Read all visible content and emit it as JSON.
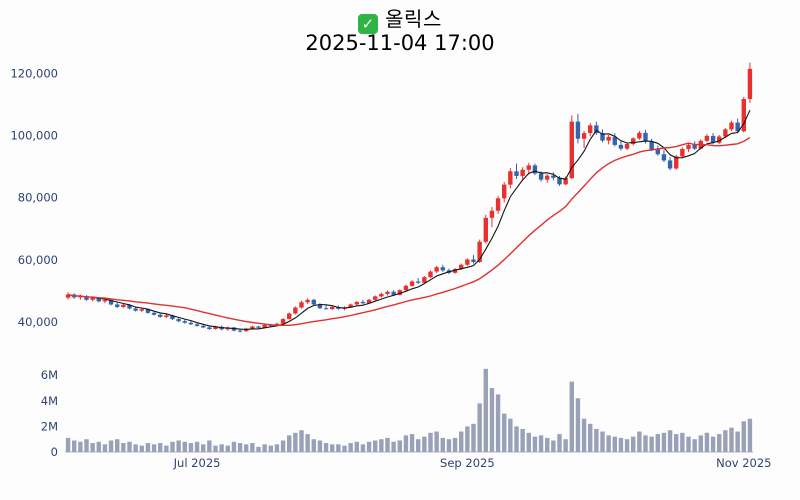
{
  "header": {
    "badge_check": "✓",
    "title": "올릭스",
    "datetime": "2025-11-04 17:00"
  },
  "chart_data": {
    "type": "candlestick",
    "title": "올릭스",
    "subtitle": "2025-11-04 17:00",
    "panels": [
      "price",
      "volume"
    ],
    "grid": false,
    "price_axis": {
      "min": 29000,
      "max": 125000,
      "ticks": [
        {
          "v": 40000,
          "label": "40,000"
        },
        {
          "v": 60000,
          "label": "60,000"
        },
        {
          "v": 80000,
          "label": "80,000"
        },
        {
          "v": 100000,
          "label": "100,000"
        },
        {
          "v": 120000,
          "label": "120,000"
        }
      ]
    },
    "volume_axis": {
      "unit": "M",
      "max": 6.8,
      "ticks": [
        {
          "v": 0,
          "label": "0"
        },
        {
          "v": 2,
          "label": "2M"
        },
        {
          "v": 4,
          "label": "4M"
        },
        {
          "v": 6,
          "label": "6M"
        }
      ]
    },
    "x_ticks": [
      {
        "index": 21,
        "label": "Jul 2025"
      },
      {
        "index": 65,
        "label": "Sep 2025"
      },
      {
        "index": 110,
        "label": "Nov 2025"
      }
    ],
    "overlays": [
      {
        "name": "MA5",
        "window": 5,
        "color": "#141414"
      },
      {
        "name": "MA20",
        "window": 20,
        "color": "#e03131"
      }
    ],
    "colors": {
      "up": "#e8312f",
      "down": "#3464ad",
      "volume": "#99a1b8",
      "axis_text": "#2e4372",
      "baseline": "#b5b5b5"
    },
    "candle_fields": [
      "open",
      "high",
      "low",
      "close",
      "volume_millions"
    ],
    "candles": [
      [
        47800,
        49500,
        47200,
        48800,
        1.1
      ],
      [
        48800,
        49200,
        47400,
        47900,
        0.9
      ],
      [
        47900,
        48800,
        47100,
        48300,
        0.8
      ],
      [
        48300,
        48600,
        46800,
        47100,
        1.0
      ],
      [
        47100,
        48200,
        46600,
        47800,
        0.7
      ],
      [
        47800,
        48000,
        46300,
        46600,
        0.8
      ],
      [
        46600,
        47500,
        46000,
        47100,
        0.6
      ],
      [
        47100,
        47300,
        45300,
        45600,
        0.9
      ],
      [
        45600,
        46200,
        44500,
        44800,
        1.0
      ],
      [
        44800,
        45900,
        44400,
        45500,
        0.7
      ],
      [
        45500,
        45800,
        44000,
        44300,
        0.8
      ],
      [
        44300,
        44800,
        43300,
        43600,
        0.6
      ],
      [
        43600,
        44500,
        43200,
        44100,
        0.5
      ],
      [
        44100,
        44300,
        42600,
        42900,
        0.7
      ],
      [
        42900,
        43400,
        42000,
        42300,
        0.6
      ],
      [
        42300,
        42700,
        41300,
        41600,
        0.7
      ],
      [
        41600,
        42500,
        41200,
        42100,
        0.5
      ],
      [
        42100,
        42300,
        40600,
        40900,
        0.8
      ],
      [
        40900,
        41300,
        39900,
        40200,
        0.9
      ],
      [
        40200,
        40700,
        39400,
        39700,
        0.8
      ],
      [
        39700,
        40300,
        39000,
        39200,
        0.7
      ],
      [
        39200,
        39700,
        38400,
        38700,
        0.8
      ],
      [
        38700,
        39300,
        38000,
        38200,
        0.6
      ],
      [
        38200,
        38600,
        37400,
        37700,
        0.9
      ],
      [
        37700,
        38700,
        37500,
        38400,
        0.5
      ],
      [
        38400,
        38800,
        37300,
        37600,
        0.6
      ],
      [
        37600,
        38500,
        37200,
        38200,
        0.5
      ],
      [
        38200,
        38400,
        36900,
        37200,
        0.8
      ],
      [
        37200,
        37800,
        36600,
        37000,
        0.7
      ],
      [
        37000,
        38100,
        36800,
        37800,
        0.6
      ],
      [
        37800,
        38800,
        37500,
        38500,
        0.7
      ],
      [
        38500,
        38700,
        37700,
        38100,
        0.4
      ],
      [
        38100,
        39300,
        37900,
        39000,
        0.6
      ],
      [
        39000,
        39400,
        38400,
        38700,
        0.5
      ],
      [
        38700,
        39700,
        38500,
        39400,
        0.6
      ],
      [
        39400,
        41200,
        39200,
        40900,
        0.9
      ],
      [
        40900,
        43000,
        40700,
        42700,
        1.3
      ],
      [
        42700,
        45000,
        42400,
        44600,
        1.5
      ],
      [
        44600,
        46800,
        44300,
        46300,
        1.7
      ],
      [
        46300,
        47600,
        45800,
        47100,
        1.4
      ],
      [
        47100,
        47400,
        45200,
        45600,
        1.0
      ],
      [
        45600,
        46000,
        44100,
        44400,
        0.9
      ],
      [
        44400,
        45300,
        43900,
        44100,
        0.7
      ],
      [
        44100,
        45100,
        43800,
        44800,
        0.6
      ],
      [
        44800,
        45300,
        43900,
        44200,
        0.6
      ],
      [
        44200,
        45000,
        43700,
        44700,
        0.5
      ],
      [
        44700,
        45900,
        44500,
        45600,
        0.7
      ],
      [
        45600,
        46700,
        45300,
        46400,
        0.8
      ],
      [
        46400,
        47100,
        45700,
        46000,
        0.6
      ],
      [
        46000,
        47400,
        45800,
        47100,
        0.8
      ],
      [
        47100,
        48500,
        46900,
        48200,
        0.9
      ],
      [
        48200,
        49400,
        47800,
        49000,
        1.0
      ],
      [
        49000,
        50100,
        48500,
        49700,
        1.1
      ],
      [
        49700,
        50200,
        48400,
        48700,
        0.8
      ],
      [
        48700,
        50500,
        48500,
        50200,
        0.9
      ],
      [
        50200,
        52000,
        49900,
        51600,
        1.3
      ],
      [
        51600,
        53400,
        51300,
        53000,
        1.4
      ],
      [
        53000,
        54100,
        52200,
        52600,
        1.0
      ],
      [
        52600,
        54800,
        52400,
        54400,
        1.2
      ],
      [
        54400,
        56600,
        54100,
        56200,
        1.5
      ],
      [
        56200,
        58000,
        55700,
        57600,
        1.6
      ],
      [
        57600,
        58400,
        56100,
        56600,
        1.1
      ],
      [
        56600,
        57200,
        55400,
        55800,
        1.0
      ],
      [
        55800,
        57400,
        55500,
        57000,
        1.1
      ],
      [
        57000,
        58800,
        56700,
        58400,
        1.6
      ],
      [
        58400,
        60500,
        58000,
        60100,
        2.0
      ],
      [
        60100,
        61500,
        58800,
        59300,
        2.2
      ],
      [
        59300,
        66500,
        59000,
        65800,
        3.8
      ],
      [
        65800,
        74500,
        65200,
        73500,
        6.5
      ],
      [
        73500,
        77000,
        70500,
        75800,
        5.0
      ],
      [
        75800,
        80500,
        74800,
        79800,
        4.5
      ],
      [
        79800,
        85000,
        78500,
        84200,
        3.0
      ],
      [
        84200,
        89500,
        83000,
        88500,
        2.6
      ],
      [
        88500,
        91000,
        86000,
        87000,
        2.0
      ],
      [
        87000,
        89800,
        85500,
        89000,
        1.8
      ],
      [
        89000,
        91200,
        87500,
        90400,
        1.5
      ],
      [
        90400,
        91000,
        87300,
        87800,
        1.2
      ],
      [
        87800,
        88500,
        85200,
        85800,
        1.3
      ],
      [
        85800,
        87600,
        84800,
        87100,
        1.1
      ],
      [
        87100,
        88200,
        85600,
        86400,
        0.9
      ],
      [
        86400,
        87000,
        83800,
        84300,
        1.4
      ],
      [
        84300,
        86800,
        84000,
        86300,
        1.0
      ],
      [
        86300,
        106500,
        86000,
        104500,
        5.5
      ],
      [
        104500,
        107000,
        97500,
        99000,
        4.2
      ],
      [
        99000,
        101500,
        96000,
        100800,
        2.6
      ],
      [
        100800,
        104000,
        99800,
        103300,
        2.2
      ],
      [
        103300,
        104500,
        100200,
        100800,
        1.8
      ],
      [
        100800,
        102000,
        97800,
        98400,
        1.6
      ],
      [
        98400,
        100200,
        97200,
        99600,
        1.3
      ],
      [
        99600,
        100800,
        96500,
        97000,
        1.2
      ],
      [
        97000,
        98500,
        95200,
        95800,
        1.1
      ],
      [
        95800,
        97800,
        95300,
        97300,
        1.0
      ],
      [
        97300,
        99500,
        96800,
        99100,
        1.2
      ],
      [
        99100,
        101500,
        98600,
        100900,
        1.6
      ],
      [
        100900,
        101800,
        97500,
        98100,
        1.3
      ],
      [
        98100,
        99000,
        95000,
        95500,
        1.2
      ],
      [
        95500,
        96800,
        93500,
        94000,
        1.4
      ],
      [
        94000,
        95500,
        91500,
        92000,
        1.5
      ],
      [
        92000,
        93000,
        88800,
        89400,
        1.7
      ],
      [
        89400,
        93800,
        89000,
        93300,
        1.4
      ],
      [
        93300,
        96200,
        92900,
        95700,
        1.5
      ],
      [
        95700,
        97600,
        94800,
        97000,
        1.2
      ],
      [
        97000,
        98200,
        95300,
        95800,
        1.0
      ],
      [
        95800,
        98800,
        95500,
        98300,
        1.3
      ],
      [
        98300,
        100500,
        97800,
        99900,
        1.5
      ],
      [
        99900,
        100800,
        97200,
        97700,
        1.2
      ],
      [
        97700,
        100200,
        97300,
        99700,
        1.4
      ],
      [
        99700,
        102500,
        99300,
        102000,
        1.7
      ],
      [
        102000,
        104800,
        101500,
        104200,
        1.9
      ],
      [
        104200,
        105500,
        100800,
        101400,
        1.6
      ],
      [
        101400,
        112500,
        101000,
        111800,
        2.4
      ],
      [
        111800,
        123500,
        110500,
        121500,
        2.6
      ]
    ]
  }
}
